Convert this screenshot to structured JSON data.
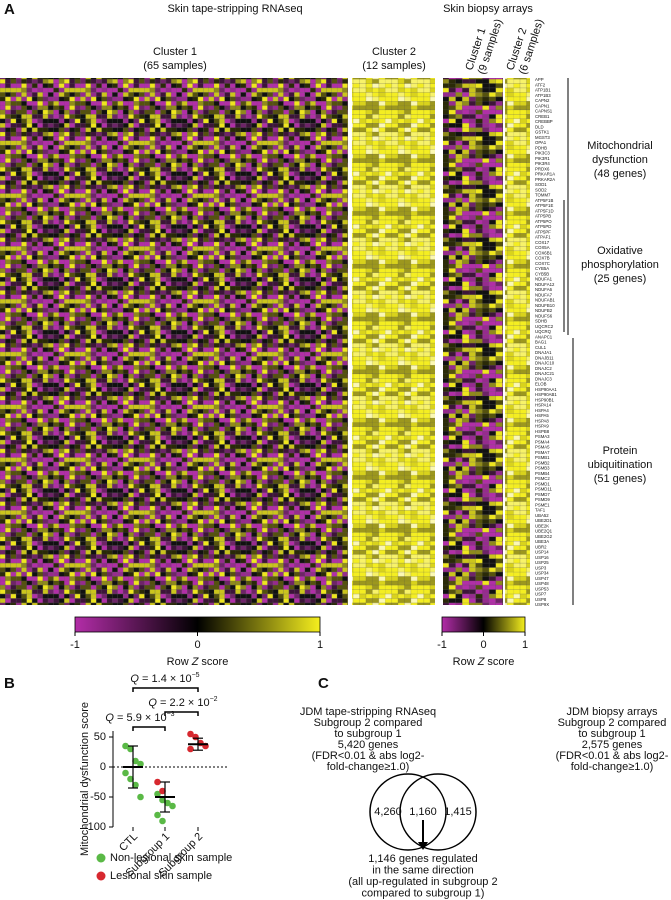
{
  "panel_a": {
    "label": "A",
    "left_title": "Skin tape-stripping RNAseq",
    "right_title": "Skin biopsy arrays",
    "left_clusters": [
      [
        "Cluster 1",
        "(65 samples)"
      ],
      [
        "Cluster 2",
        "(12 samples)"
      ]
    ],
    "right_clusters": [
      [
        "Cluster 1",
        "(9 samples)"
      ],
      [
        "Cluster 2",
        "(6 samples)"
      ]
    ],
    "genes": [
      "APP",
      "ATF2",
      "ATP1B1",
      "ATP1B3",
      "CAPN2",
      "CAPN1",
      "CAPNS1",
      "CREB1",
      "CREBBP",
      "DLD",
      "GSTK1",
      "MGST3",
      "OPA1",
      "PDHB",
      "PIK3C3",
      "PIK3R1",
      "PIK3R4",
      "PRDX6",
      "PRKAR1A",
      "PRKAR2A",
      "SOD1",
      "SOD2",
      "TOMM7",
      "ATP5F1B",
      "ATP5F1E",
      "ATP5F1D",
      "ATP5PB",
      "ATP5PO",
      "ATP5PD",
      "ATP5PF",
      "ATPAF1",
      "COX17",
      "COX5A",
      "COX6B1",
      "COX7B",
      "COX7C",
      "CYB5A",
      "CYB5B",
      "NDUFA1",
      "NDUFA12",
      "NDUFA6",
      "NDUFA7",
      "NDUFAB1",
      "NDUFB10",
      "NDUFB2",
      "NDUFS6",
      "SDHB",
      "UQCRC2",
      "UQCRQ",
      "ANAPC1",
      "BAG1",
      "CUL1",
      "DNAJA1",
      "DNAJB11",
      "DNAJC10",
      "DNAJC2",
      "DNAJC21",
      "DNAJC3",
      "ELOB",
      "HSP90AA1",
      "HSP90AB1",
      "HSP90B1",
      "HSPA14",
      "HSPA4",
      "HSPA5",
      "HSPA8",
      "HSPA9",
      "HSPB8",
      "PSMA3",
      "PSMA4",
      "PSMA5",
      "PSMA7",
      "PSMB1",
      "PSMB2",
      "PSMB3",
      "PSMB4",
      "PSMC2",
      "PSMD1",
      "PSMD11",
      "PSMD7",
      "PSMD9",
      "PSME1",
      "TAF1",
      "UBA52",
      "UBE2D1",
      "UBE2K",
      "UBE2Q1",
      "UBE2G2",
      "UBE3A",
      "UBR2",
      "USP14",
      "USP16",
      "USP25",
      "USP3",
      "USP34",
      "USP47",
      "USP48",
      "USP53",
      "USP7",
      "USP8",
      "USP9X"
    ],
    "gene_groups": [
      [
        "Mitochondrial",
        "dysfunction",
        "(48 genes)"
      ],
      [
        "Oxidative",
        "phosphorylation",
        "(25 genes)"
      ],
      [
        "Protein",
        "ubiquitination",
        "(51 genes)"
      ]
    ],
    "colorbar": {
      "zlim": [
        -1,
        1
      ],
      "zticks": [
        -1,
        0,
        1
      ],
      "colors": [
        "#b32da8",
        "#000000",
        "#f5ef1e"
      ],
      "label": [
        "Row",
        "Z",
        "score"
      ]
    }
  },
  "chart_data": {
    "type": "strip",
    "label": "B",
    "ylabel": "Mitochondrial dysfunction score",
    "categories": [
      "CTL",
      "Subgroup 1",
      "Subgroup 2"
    ],
    "ylim": [
      -100,
      60
    ],
    "yticks": [
      50,
      0,
      -50,
      -100
    ],
    "reference_line": 0,
    "series": [
      {
        "name": "Non-lesional skin sample",
        "color": "#5ab946",
        "values": [
          [
            35,
            30,
            10,
            5,
            -10,
            -20,
            -30,
            -50
          ],
          [
            -45,
            -55,
            -60,
            -65,
            -80,
            -90
          ],
          []
        ]
      },
      {
        "name": "Lesional skin sample",
        "color": "#d7282f",
        "values": [
          [],
          [
            -25,
            -40
          ],
          [
            55,
            50,
            40,
            35,
            30
          ]
        ]
      }
    ],
    "means": [
      0,
      -50,
      38
    ],
    "sd": [
      35,
      25,
      10
    ],
    "annotations": [
      {
        "symbol": "Q",
        "text": " = 1.4 × 10",
        "exp": "−5"
      },
      {
        "symbol": "Q",
        "text": " = 2.2 × 10",
        "exp": "−2"
      },
      {
        "symbol": "Q",
        "text": " = 5.9 × 10",
        "exp": "−3"
      }
    ]
  },
  "panel_c": {
    "label": "C",
    "left_text": [
      "JDM tape-stripping RNAseq",
      "Subgroup 2 compared",
      "to subgroup 1",
      "5,420 genes",
      "(FDR<0.01 & abs log2-",
      "fold-change≥1.0)"
    ],
    "right_text": [
      "JDM biopsy arrays",
      "Subgroup 2 compared",
      "to subgroup 1",
      "2,575 genes",
      "(FDR<0.01 & abs log2-",
      "fold-change≥1.0)"
    ],
    "left_only": "4,260",
    "overlap": "1,160",
    "right_only": "1,415",
    "result": [
      "1,146 genes regulated",
      "in the same direction",
      "(all up-regulated in subgroup 2",
      "compared to subgroup 1)"
    ]
  }
}
